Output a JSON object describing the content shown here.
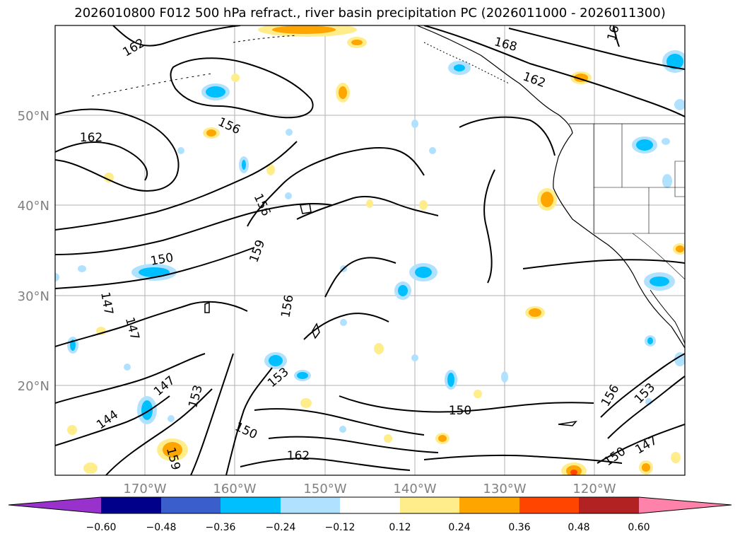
{
  "title": "2026010800 F012 500 hPa refract., river basin precipitation PC (2026011000 - 2026011300)",
  "lat_labels": [
    "50°N",
    "40°N",
    "30°N",
    "20°N"
  ],
  "lon_labels": [
    "170°W",
    "160°W",
    "150°W",
    "140°W",
    "130°W",
    "120°W"
  ],
  "contour_labels": [
    "162",
    "168",
    "162",
    "16",
    "156",
    "162",
    "156",
    "159",
    "150",
    "156",
    "147",
    "147",
    "153",
    "147",
    "153",
    "150",
    "144",
    "159",
    "162",
    "150",
    "156",
    "153",
    "150",
    "147"
  ],
  "colorbar": {
    "ticks": [
      "−0.60",
      "−0.48",
      "−0.36",
      "−0.24",
      "−0.12",
      "0.12",
      "0.24",
      "0.36",
      "0.48",
      "0.60"
    ],
    "colors": [
      "#9932cc",
      "#00008b",
      "#3a5fcd",
      "#00bfff",
      "#b0e2ff",
      "#ffffff",
      "#ffec8b",
      "#ffa500",
      "#ff4500",
      "#b22222",
      "#ff82ab"
    ]
  }
}
